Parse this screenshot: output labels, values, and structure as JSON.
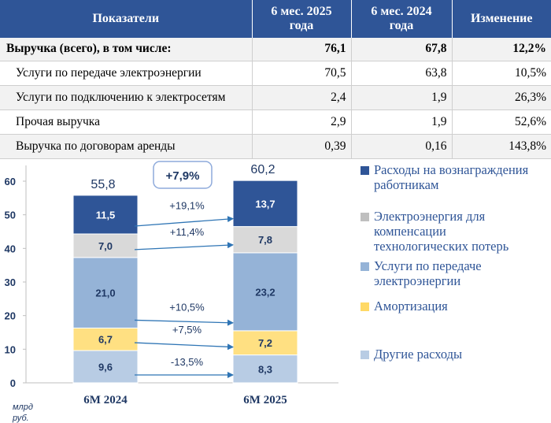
{
  "table": {
    "headers": {
      "indicator": "Показатели",
      "col1_line1": "6 мес. 2025",
      "col1_line2": "года",
      "col2_line1": "6 мес. 2024",
      "col2_line2": "года",
      "change": "Изменение"
    },
    "rows": [
      {
        "label": "Выручка (всего), в том числе:",
        "v2025": "76,1",
        "v2024": "67,8",
        "change": "12,2%"
      },
      {
        "label": "Услуги по передаче электроэнергии",
        "v2025": "70,5",
        "v2024": "63,8",
        "change": "10,5%"
      },
      {
        "label": "Услуги по подключению к электросетям",
        "v2025": "2,4",
        "v2024": "1,9",
        "change": "26,3%"
      },
      {
        "label": "Прочая выручка",
        "v2025": "2,9",
        "v2024": "1,9",
        "change": "52,6%"
      },
      {
        "label": "Выручка по договорам аренды",
        "v2025": "0,39",
        "v2024": "0,16",
        "change": "143,8%"
      }
    ]
  },
  "chart_data": {
    "type": "bar",
    "stacked": true,
    "categories": [
      "6M 2024",
      "6M 2025"
    ],
    "series": [
      {
        "name": "Другие расходы",
        "values": [
          9.6,
          8.3
        ],
        "labels": [
          "9,6",
          "8,3"
        ],
        "color": "#b8cce4",
        "change": "-13,5%"
      },
      {
        "name": "Амортизация",
        "values": [
          6.7,
          7.2
        ],
        "labels": [
          "6,7",
          "7,2"
        ],
        "color": "#ffe082",
        "change": "+7,5%"
      },
      {
        "name": "Услуги по передаче электроэнергии",
        "values": [
          21.0,
          23.2
        ],
        "labels": [
          "21,0",
          "23,2"
        ],
        "color": "#95b3d7",
        "change": "+10,5%"
      },
      {
        "name": "Электроэнергия для компенсации технологических потерь",
        "values": [
          7.0,
          7.8
        ],
        "labels": [
          "7,0",
          "7,8"
        ],
        "color": "#d9d9d9",
        "change": "+11,4%"
      },
      {
        "name": "Расходы на вознаграждения работникам",
        "values": [
          11.5,
          13.7
        ],
        "labels": [
          "11,5",
          "13,7"
        ],
        "color": "#2f5597",
        "change": "+19,1%"
      }
    ],
    "totals": [
      "55,8",
      "60,2"
    ],
    "total_change": "+7,9%",
    "ylim": [
      0,
      60
    ],
    "yticks": [
      0,
      10,
      20,
      30,
      40,
      50,
      60
    ],
    "unit_label": "млрд руб.",
    "legend_position": "right"
  },
  "legend": [
    {
      "lines": [
        "Расходы на вознаграждения",
        "работникам"
      ],
      "color": "#2f5597"
    },
    {
      "lines": [
        "Электроэнергия для",
        "компенсации",
        "технологических потерь"
      ],
      "color": "#bfbfbf"
    },
    {
      "lines": [
        "Услуги по передаче",
        "электроэнергии"
      ],
      "color": "#95b3d7"
    },
    {
      "lines": [
        "Амортизация"
      ],
      "color": "#ffd966"
    },
    {
      "lines": [
        "Другие расходы"
      ],
      "color": "#b8cce4"
    }
  ]
}
